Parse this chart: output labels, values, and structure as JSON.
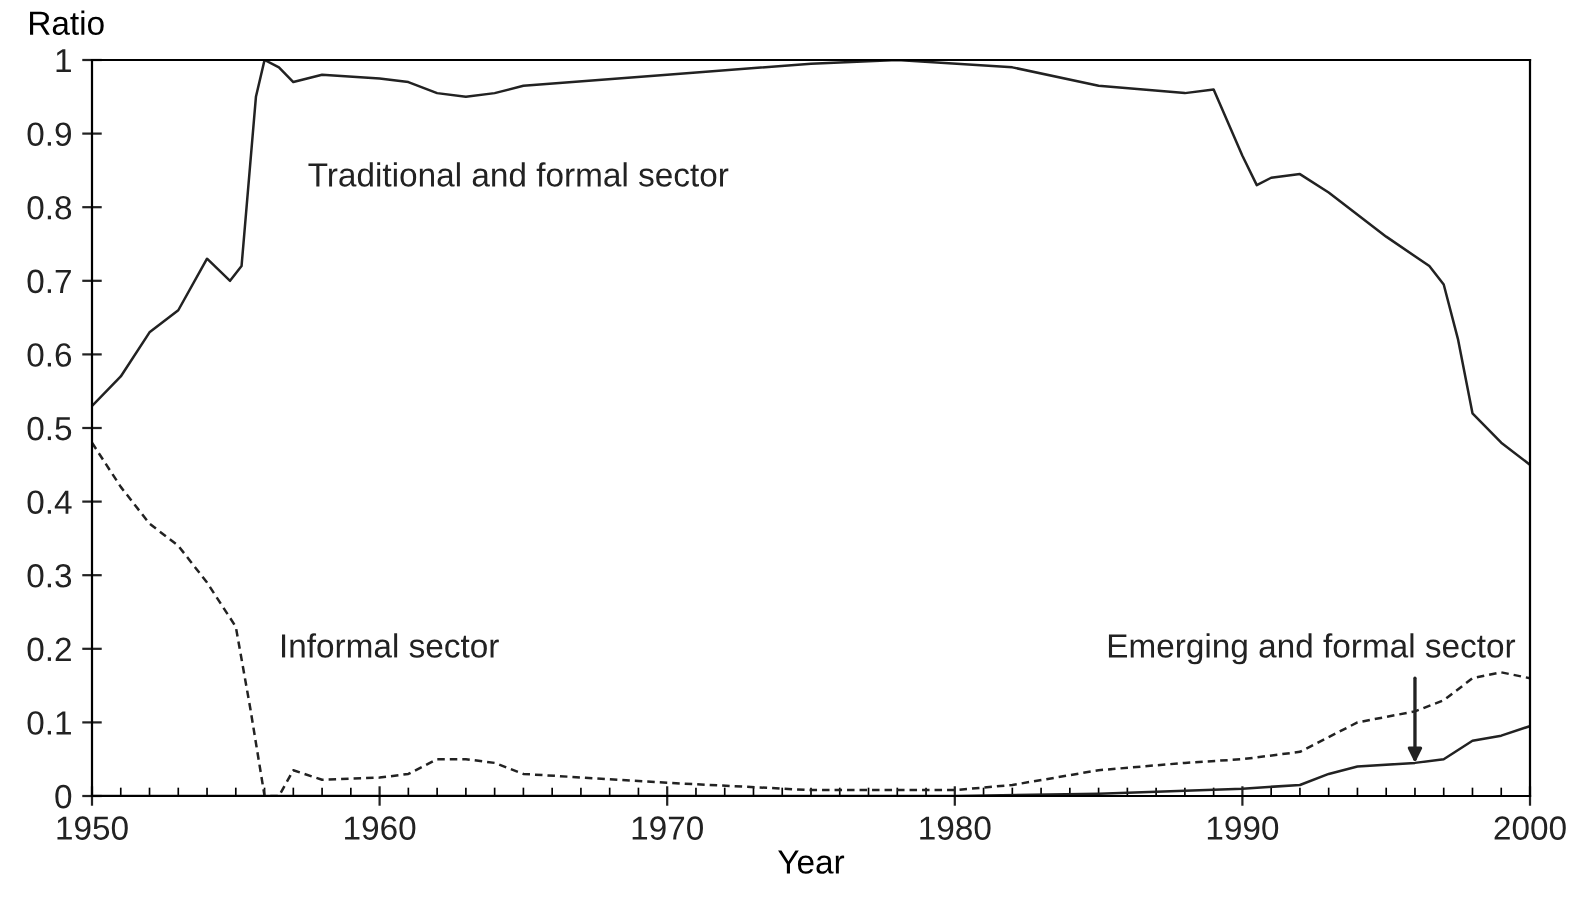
{
  "chart_data": {
    "type": "line",
    "xlabel": "Year",
    "ylabel": "Ratio",
    "xlim": [
      1950,
      2000
    ],
    "xticks": [
      1950,
      1960,
      1970,
      1980,
      1990,
      2000
    ],
    "ylim": [
      0,
      1
    ],
    "yticks": [
      0,
      0.1,
      0.2,
      0.3,
      0.4,
      0.5,
      0.6,
      0.7,
      0.8,
      0.9,
      1
    ],
    "grid": false,
    "legend": false,
    "marker": "none",
    "series": [
      {
        "name": "Traditional and formal sector",
        "color": "#222222",
        "line_style": "solid",
        "x": [
          1950,
          1951,
          1952,
          1953,
          1954,
          1954.8,
          1955.2,
          1955.7,
          1956,
          1956.5,
          1957,
          1958,
          1960,
          1961,
          1962,
          1963,
          1964,
          1965,
          1970,
          1975,
          1978,
          1982,
          1985,
          1988,
          1989,
          1990,
          1990.5,
          1991,
          1992,
          1993,
          1995,
          1996.5,
          1997,
          1997.5,
          1998,
          1999,
          2000
        ],
        "values": [
          0.53,
          0.57,
          0.63,
          0.66,
          0.73,
          0.7,
          0.72,
          0.95,
          1.0,
          0.99,
          0.97,
          0.98,
          0.975,
          0.97,
          0.955,
          0.95,
          0.955,
          0.965,
          0.98,
          0.995,
          1.0,
          0.99,
          0.965,
          0.955,
          0.96,
          0.87,
          0.83,
          0.84,
          0.845,
          0.82,
          0.76,
          0.72,
          0.695,
          0.62,
          0.52,
          0.48,
          0.45
        ]
      },
      {
        "name": "Informal sector",
        "color": "#222222",
        "line_style": "dashed",
        "x": [
          1950,
          1951,
          1952,
          1953,
          1954,
          1955,
          1955.5,
          1956,
          1956.5,
          1957,
          1958,
          1960,
          1961,
          1962,
          1963,
          1964,
          1965,
          1970,
          1975,
          1980,
          1982,
          1985,
          1988,
          1990,
          1992,
          1993,
          1994,
          1996,
          1997,
          1998,
          1999,
          2000
        ],
        "values": [
          0.48,
          0.42,
          0.37,
          0.34,
          0.29,
          0.23,
          0.12,
          0.0,
          0.0,
          0.035,
          0.022,
          0.025,
          0.03,
          0.05,
          0.05,
          0.045,
          0.03,
          0.018,
          0.008,
          0.008,
          0.015,
          0.035,
          0.045,
          0.05,
          0.06,
          0.08,
          0.1,
          0.115,
          0.13,
          0.16,
          0.168,
          0.16
        ]
      },
      {
        "name": "Emerging and formal sector",
        "color": "#222222",
        "line_style": "solid",
        "x": [
          1950,
          1975,
          1980,
          1985,
          1990,
          1992,
          1993,
          1994,
          1996,
          1997,
          1998,
          1999,
          2000
        ],
        "values": [
          0,
          0,
          0,
          0.003,
          0.01,
          0.015,
          0.03,
          0.04,
          0.045,
          0.05,
          0.075,
          0.082,
          0.095
        ]
      }
    ]
  }
}
